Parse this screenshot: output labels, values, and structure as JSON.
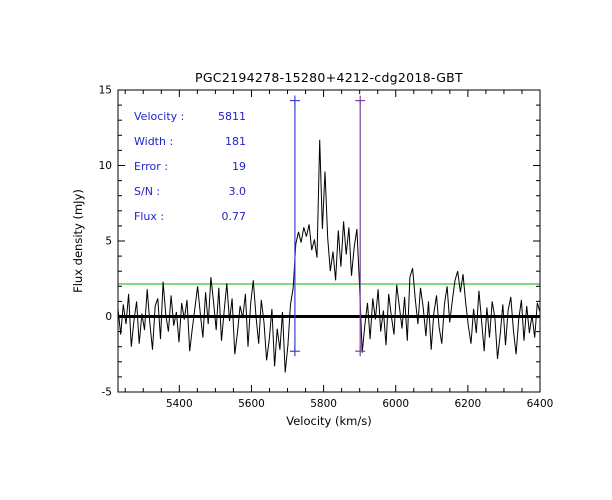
{
  "title": "PGC2194278-15280+4212-cdg2018-GBT",
  "annotations": {
    "items": [
      {
        "label": "Velocity :",
        "value": "5811"
      },
      {
        "label": "Width :",
        "value": "181"
      },
      {
        "label": "Error :",
        "value": "19"
      },
      {
        "label": "S/N :",
        "value": "3.0"
      },
      {
        "label": "Flux :",
        "value": "0.77"
      }
    ]
  },
  "chart_data": {
    "type": "line",
    "title": "PGC2194278-15280+4212-cdg2018-GBT",
    "xlabel": "Velocity (km/s)",
    "ylabel": "Flux density (mJy)",
    "xlim": [
      5230,
      6400
    ],
    "ylim": [
      -5,
      15
    ],
    "xticks": [
      5400,
      5600,
      5800,
      6000,
      6200,
      6400
    ],
    "yticks": [
      -5,
      0,
      5,
      10,
      15
    ],
    "x_minor_step": 50,
    "y_minor_step": 1,
    "grid": false,
    "line_color": "#000000",
    "x_start": 5230,
    "x_step": 7.358,
    "spectrum_y": [
      0.5,
      -1.2,
      0.8,
      -0.5,
      1.5,
      -2.0,
      -0.3,
      1.0,
      -1.8,
      0.2,
      -0.9,
      1.8,
      -0.4,
      -2.2,
      0.7,
      1.2,
      -1.5,
      2.3,
      0.1,
      -1.0,
      1.4,
      -0.6,
      0.3,
      -1.7,
      0.9,
      -0.2,
      1.1,
      -2.3,
      -0.8,
      0.6,
      2.0,
      0.2,
      -1.4,
      1.6,
      -0.5,
      2.6,
      1.0,
      -0.9,
      1.9,
      -1.6,
      0.4,
      2.2,
      -0.3,
      1.2,
      -2.5,
      -1.1,
      0.7,
      -0.1,
      1.5,
      -2.0,
      0.9,
      2.4,
      0.0,
      -1.8,
      1.1,
      -0.4,
      -2.9,
      -1.5,
      0.5,
      -3.3,
      -0.8,
      -2.2,
      0.3,
      -3.7,
      -1.9,
      0.8,
      1.9,
      4.8,
      5.6,
      4.9,
      5.9,
      5.3,
      6.1,
      4.4,
      5.1,
      3.9,
      11.7,
      5.8,
      9.6,
      5.2,
      3.0,
      4.3,
      2.4,
      5.7,
      3.3,
      6.3,
      4.1,
      5.9,
      2.7,
      4.6,
      5.8,
      2.1,
      -2.4,
      -0.6,
      0.9,
      -1.5,
      1.2,
      -0.2,
      1.8,
      -1.0,
      0.4,
      -1.9,
      1.5,
      0.0,
      -1.2,
      2.1,
      0.7,
      -0.8,
      1.3,
      -1.6,
      2.6,
      3.2,
      1.2,
      -0.5,
      1.9,
      0.6,
      -1.3,
      1.0,
      -2.2,
      0.2,
      1.4,
      -0.7,
      -1.8,
      0.8,
      2.0,
      -0.4,
      1.1,
      2.4,
      3.0,
      1.6,
      2.8,
      0.9,
      -0.6,
      -1.8,
      0.5,
      -1.1,
      1.7,
      -0.3,
      -2.3,
      0.6,
      -1.4,
      1.0,
      -0.1,
      -2.8,
      -1.2,
      0.8,
      -1.9,
      0.4,
      1.3,
      -0.9,
      -2.5,
      -0.2,
      1.1,
      -1.6,
      0.7,
      -1.1,
      0.1,
      -1.4,
      0.9,
      0.3
    ],
    "baseline_y": 0,
    "rms_line": {
      "y": 2.15,
      "color": "#00b400"
    },
    "markers": [
      {
        "x": 5720.5,
        "y_bottom": -2.3,
        "y_top": 14.3,
        "color": "#3f3fcf"
      },
      {
        "x": 5901.5,
        "y_bottom": -2.3,
        "y_top": 14.3,
        "color": "#8040a0"
      }
    ],
    "fit": {
      "velocity": 5811,
      "width": 181,
      "error": 19,
      "sn": 3.0,
      "flux": 0.77
    },
    "legend": null
  }
}
